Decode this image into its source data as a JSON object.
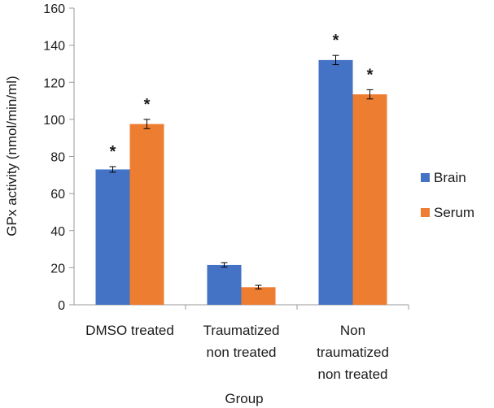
{
  "chart_data": {
    "type": "bar",
    "title": "",
    "xlabel": "Group",
    "ylabel": "GPx activity (nmol/min/ml)",
    "ylim": [
      0,
      160
    ],
    "yticks": [
      0,
      20,
      40,
      60,
      80,
      100,
      120,
      140,
      160
    ],
    "ytick_labels": [
      "0",
      "20",
      "40",
      "60",
      "80",
      "100",
      "120",
      "140",
      "160"
    ],
    "categories": [
      [
        "DMSO treated"
      ],
      [
        "Traumatized",
        "non treated"
      ],
      [
        "Non",
        "traumatized",
        "non treated"
      ]
    ],
    "series": [
      {
        "name": "Brain",
        "color": "#4472C4",
        "values": [
          73,
          21.5,
          132
        ],
        "errors": [
          1.5,
          1.2,
          2.5
        ],
        "significance": [
          "*",
          "",
          "*"
        ]
      },
      {
        "name": "Serum",
        "color": "#ED7D31",
        "values": [
          97.5,
          9.5,
          113.5
        ],
        "errors": [
          2.5,
          1.0,
          2.5
        ],
        "significance": [
          "*",
          "",
          "*"
        ]
      }
    ],
    "legend_position": "right",
    "grid": false
  }
}
